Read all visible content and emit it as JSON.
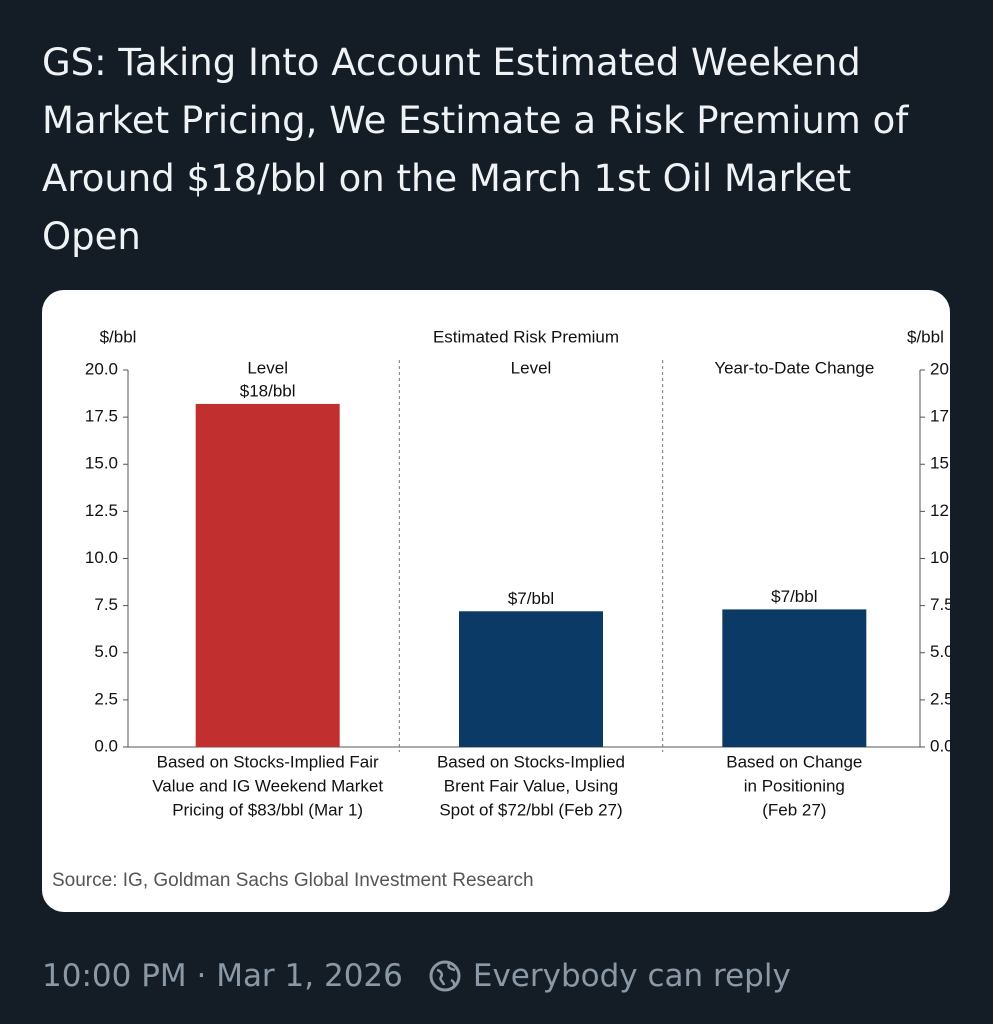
{
  "post": {
    "text": "GS: Taking Into Account Estimated Weekend Market Pricing, We Estimate a Risk Premium of Around $18/bbl on the March 1st Oil Market Open",
    "timestamp": "10:00 PM · Mar 1, 2026",
    "reply_setting": "Everybody can reply"
  },
  "chart_data": {
    "type": "bar",
    "title": "Estimated Risk Premium",
    "ylabel": "$/bbl",
    "y2label": "$/bbl",
    "panel_titles": [
      "Level",
      "Level",
      "Year-to-Date Change"
    ],
    "categories": [
      [
        "Based on Stocks-Implied Fair",
        "Value and IG Weekend Market",
        "Pricing of $83/bbl (Mar 1)"
      ],
      [
        "Based on Stocks-Implied",
        "Brent Fair Value, Using",
        "Spot of $72/bbl (Feb 27)"
      ],
      [
        "Based on Change",
        "in Positioning",
        "(Feb 27)"
      ]
    ],
    "values": [
      18.2,
      7.2,
      7.3
    ],
    "value_labels": [
      "$18/bbl",
      "$7/bbl",
      "$7/bbl"
    ],
    "colors": [
      "#c1302e",
      "#0c3a66",
      "#0c3a66"
    ],
    "ylim": [
      0,
      20
    ],
    "yticks": [
      {
        "value": 0,
        "label": "0.0"
      },
      2.5,
      {
        "value": 5,
        "label": "5.0"
      },
      7.5,
      {
        "value": 10,
        "label": "10.0"
      },
      12.5,
      {
        "value": 15,
        "label": "15.0"
      },
      17.5,
      {
        "value": 20,
        "label": "20.0"
      }
    ],
    "source": "Source: IG, Goldman Sachs Global Investment Research"
  }
}
